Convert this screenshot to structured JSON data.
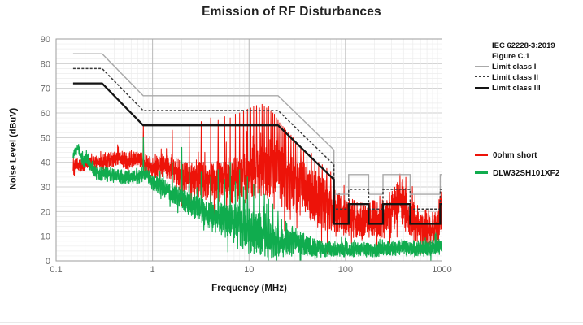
{
  "chart_data": {
    "type": "line",
    "title": "Emission of RF Disturbances",
    "standard_ref": {
      "line1": "IEC 62228-3:2019",
      "line2": "Figure C.1"
    },
    "x_axis": {
      "label": "Frequency (MHz)",
      "scale": "log",
      "range": [
        0.1,
        1000
      ],
      "tick_values": [
        0.1,
        1,
        10,
        100,
        1000
      ],
      "tick_labels": [
        "0.1",
        "1",
        "10",
        "100",
        "1000"
      ]
    },
    "y_axis": {
      "label": "Noise Level (dBuV)",
      "range": [
        0,
        90
      ],
      "tick_step": 10,
      "minor_step": 2,
      "tick_labels": [
        "0",
        "10",
        "20",
        "30",
        "40",
        "50",
        "60",
        "70",
        "80",
        "90"
      ]
    },
    "f_start": 0.15,
    "grid": true,
    "legend_position": "right",
    "colors": {
      "border": "#9e9e9e",
      "grid_minor": "#ececec",
      "grid_major": "#cfcfcf",
      "grid_decade": "#b9b9b9",
      "tick_text": "#6b6b6b",
      "title_text": "#222222"
    },
    "limit_lines": [
      {
        "name": "Limit class I",
        "style": "thin",
        "color": "#a9a9a9",
        "points": [
          [
            0.15,
            84
          ],
          [
            0.3,
            84
          ],
          [
            0.8,
            67
          ],
          [
            20,
            67
          ],
          [
            76,
            45
          ],
          [
            76,
            27
          ],
          [
            108,
            27
          ],
          [
            108,
            35
          ],
          [
            174,
            35
          ],
          [
            174,
            27
          ],
          [
            245,
            27
          ],
          [
            245,
            35
          ],
          [
            468,
            35
          ],
          [
            468,
            27
          ],
          [
            960,
            27
          ],
          [
            960,
            35
          ],
          [
            1000,
            35
          ]
        ]
      },
      {
        "name": "Limit class II",
        "style": "dashed",
        "color": "#3a3a3a",
        "points": [
          [
            0.15,
            78
          ],
          [
            0.3,
            78
          ],
          [
            0.8,
            61
          ],
          [
            20,
            61
          ],
          [
            76,
            39
          ],
          [
            76,
            21
          ],
          [
            108,
            21
          ],
          [
            108,
            29
          ],
          [
            174,
            29
          ],
          [
            174,
            21
          ],
          [
            245,
            21
          ],
          [
            245,
            29
          ],
          [
            468,
            29
          ],
          [
            468,
            21
          ],
          [
            960,
            21
          ],
          [
            960,
            29
          ],
          [
            1000,
            29
          ]
        ]
      },
      {
        "name": "Limit class III",
        "style": "thick",
        "color": "#141414",
        "points": [
          [
            0.15,
            72
          ],
          [
            0.3,
            72
          ],
          [
            0.8,
            55
          ],
          [
            20,
            55
          ],
          [
            76,
            33
          ],
          [
            76,
            15
          ],
          [
            108,
            15
          ],
          [
            108,
            23
          ],
          [
            174,
            23
          ],
          [
            174,
            15
          ],
          [
            245,
            15
          ],
          [
            245,
            23
          ],
          [
            468,
            23
          ],
          [
            468,
            15
          ],
          [
            960,
            15
          ],
          [
            960,
            23
          ],
          [
            1000,
            23
          ]
        ]
      }
    ],
    "traces": [
      {
        "name": "0ohm short",
        "color": "#ed1309",
        "seed": 7,
        "line_width": 1.05,
        "envelope_mean": [
          [
            0.15,
            39
          ],
          [
            0.2,
            39
          ],
          [
            0.3,
            40
          ],
          [
            0.45,
            42
          ],
          [
            0.55,
            40
          ],
          [
            0.65,
            42
          ],
          [
            0.8,
            40
          ],
          [
            1.0,
            38
          ],
          [
            1.6,
            38
          ],
          [
            2,
            34
          ],
          [
            3,
            33
          ],
          [
            5,
            32
          ],
          [
            8,
            33
          ],
          [
            12,
            36
          ],
          [
            18,
            37
          ],
          [
            25,
            33
          ],
          [
            35,
            29
          ],
          [
            50,
            25
          ],
          [
            70,
            21
          ],
          [
            90,
            18
          ],
          [
            150,
            16
          ],
          [
            250,
            17
          ],
          [
            300,
            20
          ],
          [
            370,
            26
          ],
          [
            450,
            18
          ],
          [
            600,
            14
          ],
          [
            800,
            13
          ],
          [
            1000,
            15
          ]
        ],
        "envelope_half": [
          [
            0.15,
            2.5
          ],
          [
            0.3,
            3
          ],
          [
            0.8,
            4
          ],
          [
            1.5,
            5
          ],
          [
            2,
            7
          ],
          [
            4,
            8
          ],
          [
            8,
            10
          ],
          [
            12,
            12
          ],
          [
            20,
            13
          ],
          [
            30,
            13
          ],
          [
            50,
            12
          ],
          [
            76,
            10
          ],
          [
            100,
            8
          ],
          [
            200,
            8
          ],
          [
            300,
            9
          ],
          [
            370,
            10
          ],
          [
            500,
            8
          ],
          [
            700,
            7
          ],
          [
            1000,
            7
          ]
        ],
        "spikes": [
          [
            0.8,
            55
          ],
          [
            1.6,
            53
          ],
          [
            2.4,
            55
          ],
          [
            3.2,
            56.5
          ],
          [
            4.0,
            58
          ],
          [
            4.8,
            57
          ],
          [
            5.6,
            58.5
          ],
          [
            6.4,
            58
          ],
          [
            7.2,
            59.5
          ],
          [
            8.0,
            60
          ],
          [
            8.8,
            61
          ],
          [
            9.6,
            61.5
          ],
          [
            10.4,
            62
          ],
          [
            11.2,
            62.5
          ],
          [
            12.0,
            63
          ],
          [
            12.8,
            62
          ],
          [
            13.6,
            63.5
          ],
          [
            14.4,
            62.5
          ],
          [
            15.2,
            62
          ],
          [
            16.0,
            62.5
          ],
          [
            16.8,
            61
          ],
          [
            17.6,
            60
          ],
          [
            18.4,
            59.5
          ],
          [
            19.2,
            58
          ],
          [
            20.0,
            57
          ],
          [
            20.8,
            56
          ],
          [
            21.6,
            55
          ],
          [
            22.4,
            54.5
          ],
          [
            23.2,
            54
          ],
          [
            24.0,
            53
          ],
          [
            25.6,
            52
          ],
          [
            27.2,
            51
          ],
          [
            28.8,
            50
          ],
          [
            30.4,
            48.5
          ],
          [
            32,
            47
          ],
          [
            34.4,
            46
          ],
          [
            36.8,
            45
          ],
          [
            40,
            44
          ],
          [
            44,
            42.5
          ],
          [
            48,
            41
          ],
          [
            52.8,
            40
          ],
          [
            57.6,
            39
          ],
          [
            64,
            37.5
          ],
          [
            70.4,
            36
          ],
          [
            76,
            35
          ],
          [
            952,
            26
          ],
          [
            975,
            28
          ],
          [
            990,
            25
          ]
        ]
      },
      {
        "name": "DLW32SH101XF2",
        "color": "#10ac4e",
        "seed": 13,
        "line_width": 1.2,
        "envelope_mean": [
          [
            0.15,
            43
          ],
          [
            0.17,
            46
          ],
          [
            0.19,
            40
          ],
          [
            0.21,
            42
          ],
          [
            0.25,
            36
          ],
          [
            0.35,
            35
          ],
          [
            0.5,
            34
          ],
          [
            0.7,
            34
          ],
          [
            0.85,
            36
          ],
          [
            1.0,
            32
          ],
          [
            1.5,
            28
          ],
          [
            2,
            25
          ],
          [
            3,
            21
          ],
          [
            4,
            18
          ],
          [
            5,
            17
          ],
          [
            7,
            15
          ],
          [
            10,
            13
          ],
          [
            15,
            10
          ],
          [
            20,
            7
          ],
          [
            30,
            8
          ],
          [
            50,
            5
          ],
          [
            100,
            4.5
          ],
          [
            200,
            4.5
          ],
          [
            400,
            5.5
          ],
          [
            700,
            5
          ],
          [
            1000,
            5.5
          ]
        ],
        "envelope_half": [
          [
            0.15,
            2
          ],
          [
            0.3,
            3
          ],
          [
            0.8,
            3
          ],
          [
            1.5,
            4
          ],
          [
            3,
            5
          ],
          [
            6,
            7
          ],
          [
            10,
            10
          ],
          [
            15,
            9
          ],
          [
            20,
            6
          ],
          [
            30,
            5
          ],
          [
            50,
            3.5
          ],
          [
            100,
            3
          ],
          [
            300,
            3
          ],
          [
            1000,
            3.5
          ]
        ],
        "spikes": [
          [
            0.8,
            50
          ],
          [
            1.6,
            40
          ],
          [
            2.0,
            46
          ],
          [
            2.4,
            38
          ],
          [
            3.2,
            36
          ],
          [
            4.0,
            34
          ],
          [
            4.8,
            37
          ],
          [
            5.6,
            33
          ],
          [
            6.4,
            40
          ],
          [
            7.2,
            32
          ],
          [
            8.0,
            37
          ],
          [
            8.8,
            30
          ],
          [
            9.6,
            34
          ],
          [
            11.2,
            31
          ],
          [
            12.8,
            29
          ],
          [
            14.4,
            27
          ],
          [
            16,
            25
          ],
          [
            17.6,
            23
          ],
          [
            20,
            20
          ],
          [
            24,
            16
          ],
          [
            28,
            14
          ]
        ]
      }
    ]
  }
}
